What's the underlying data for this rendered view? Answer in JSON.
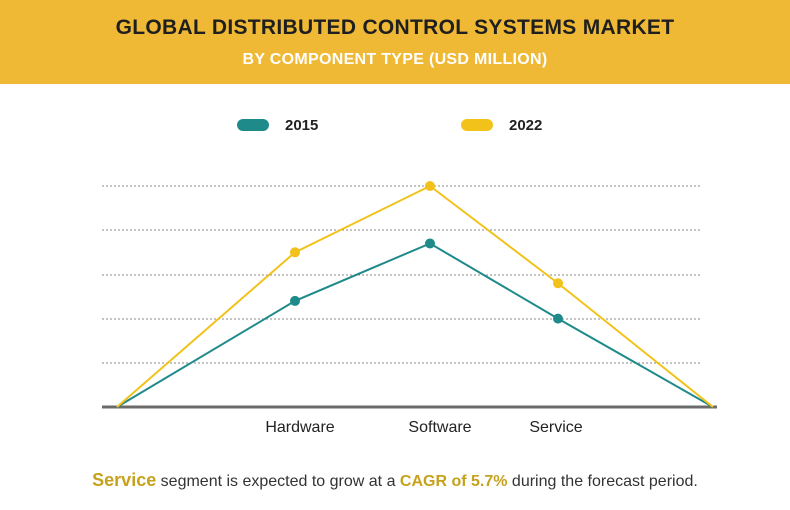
{
  "header": {
    "title": "GLOBAL DISTRIBUTED CONTROL SYSTEMS MARKET",
    "subtitle": "BY COMPONENT TYPE (USD MILLION)"
  },
  "colors": {
    "header_bg": "#efb935",
    "series_2015": "#1f8a8a",
    "series_2022": "#f2c21a",
    "accent_text": "#c6a21c",
    "grid": "#888888",
    "baseline": "#6b6b6b"
  },
  "chart_data": {
    "type": "line",
    "categories": [
      "",
      "Hardware",
      "Software",
      "Service",
      ""
    ],
    "series": [
      {
        "name": "2015",
        "values": [
          0,
          24,
          37,
          20,
          0
        ]
      },
      {
        "name": "2022",
        "values": [
          0,
          35,
          50,
          28,
          0
        ]
      }
    ],
    "ylim": [
      0,
      50
    ],
    "grid": true,
    "legend": "top"
  },
  "footer": {
    "segment": "Service",
    "text_mid": " segment is expected to grow at a ",
    "cagr": "CAGR of 5.7%",
    "text_end": " during the forecast period."
  }
}
